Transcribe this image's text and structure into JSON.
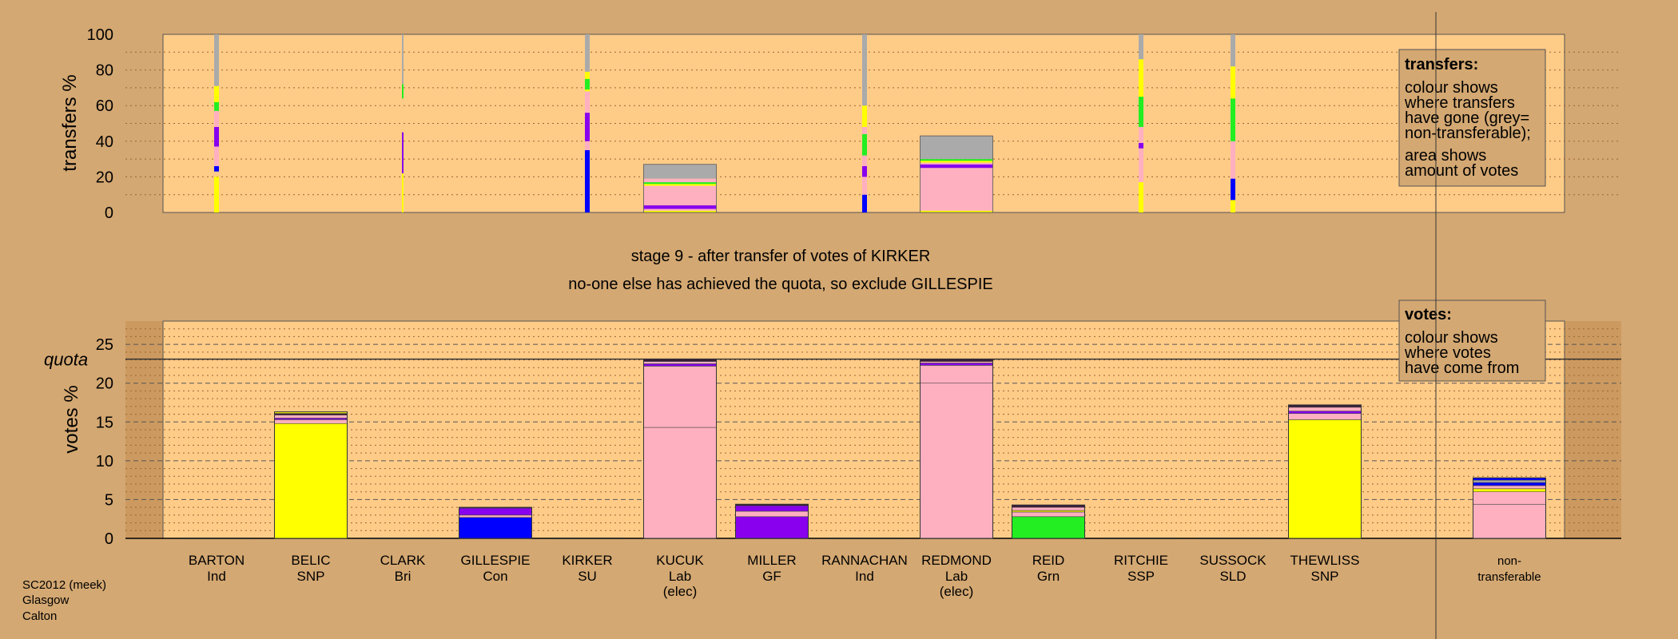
{
  "colors": {
    "background": "#d4a872",
    "panel": "#ffcc88",
    "panel_dark": "#cc9a60",
    "SNP": "#ffff00",
    "Lab": "#ffb0c0",
    "Con": "#0000ff",
    "GF": "#8800ee",
    "Grn": "#22ee22",
    "nontransferable": "#aaaaaa"
  },
  "header": {
    "stage_title": "stage 9 - after transfer of votes of KIRKER",
    "stage_subtitle": "no-one else has achieved the quota, so exclude GILLESPIE"
  },
  "footer": {
    "line1": "SC2012 (meek)",
    "line2": "Glasgow",
    "line3": "Calton"
  },
  "transfers_legend": {
    "title": "transfers:",
    "lines": [
      "colour shows",
      "where transfers",
      "have gone (grey=",
      "non-transferable);",
      "area shows",
      "amount of votes"
    ]
  },
  "votes_legend": {
    "title": "votes:",
    "lines": [
      "colour shows",
      "where votes",
      "have come from"
    ]
  },
  "chart_data": [
    {
      "type": "bar",
      "ylabel": "transfers %",
      "ylim": [
        0,
        100
      ],
      "yticks": [
        0,
        20,
        40,
        60,
        80,
        100
      ],
      "candidates": [
        "BARTON",
        "BELIC",
        "CLARK",
        "GILLESPIE",
        "KIRKER",
        "KUCUK",
        "MILLER",
        "RANNACHAN",
        "REDMOND",
        "REID",
        "RITCHIE",
        "SUSSOCK",
        "THEWLISS",
        "non-transferable"
      ],
      "transfers": [
        {
          "candidate": "BARTON",
          "width": "thin",
          "segments": [
            {
              "color": "#ffff00",
              "from": 0,
              "to": 20
            },
            {
              "color": "#0000ff",
              "from": 23,
              "to": 26
            },
            {
              "color": "#ffb0c0",
              "from": 26,
              "to": 37
            },
            {
              "color": "#8800ee",
              "from": 37,
              "to": 48
            },
            {
              "color": "#ffb0c0",
              "from": 48,
              "to": 57
            },
            {
              "color": "#22ee22",
              "from": 57,
              "to": 62
            },
            {
              "color": "#ffff00",
              "from": 62,
              "to": 71
            },
            {
              "color": "#aaaaaa",
              "from": 71,
              "to": 100
            }
          ]
        },
        {
          "candidate": "CLARK",
          "width": "hair",
          "segments": [
            {
              "color": "#ffff00",
              "from": 0,
              "to": 22
            },
            {
              "color": "#8800ee",
              "from": 22,
              "to": 45
            },
            {
              "color": "#22ee22",
              "from": 64,
              "to": 72
            },
            {
              "color": "#aaaaaa",
              "from": 72,
              "to": 100
            }
          ]
        },
        {
          "candidate": "KIRKER",
          "width": "thin",
          "segments": [
            {
              "color": "#0000ff",
              "from": 0,
              "to": 35
            },
            {
              "color": "#ffb0c0",
              "from": 35,
              "to": 40
            },
            {
              "color": "#8800ee",
              "from": 40,
              "to": 56
            },
            {
              "color": "#ffb0c0",
              "from": 56,
              "to": 68
            },
            {
              "color": "#ffff00",
              "from": 68,
              "to": 69
            },
            {
              "color": "#22ee22",
              "from": 69,
              "to": 75
            },
            {
              "color": "#ffff00",
              "from": 75,
              "to": 79
            },
            {
              "color": "#aaaaaa",
              "from": 79,
              "to": 100
            }
          ]
        },
        {
          "candidate": "KUCUK",
          "width": "wide",
          "segments": [
            {
              "color": "#ffff00",
              "from": 0,
              "to": 1
            },
            {
              "color": "#ffb0c0",
              "from": 1,
              "to": 2
            },
            {
              "color": "#8800ee",
              "from": 2,
              "to": 4
            },
            {
              "color": "#ffb0c0",
              "from": 4,
              "to": 15
            },
            {
              "color": "#ffff00",
              "from": 15,
              "to": 16
            },
            {
              "color": "#22ee22",
              "from": 16,
              "to": 17
            },
            {
              "color": "#ffb0c0",
              "from": 17,
              "to": 19
            },
            {
              "color": "#aaaaaa",
              "from": 19,
              "to": 27
            }
          ]
        },
        {
          "candidate": "RANNACHAN",
          "width": "thin",
          "segments": [
            {
              "color": "#0000ff",
              "from": 0,
              "to": 10
            },
            {
              "color": "#ffb0c0",
              "from": 10,
              "to": 20
            },
            {
              "color": "#8800ee",
              "from": 20,
              "to": 26
            },
            {
              "color": "#ffb0c0",
              "from": 26,
              "to": 32
            },
            {
              "color": "#22ee22",
              "from": 32,
              "to": 44
            },
            {
              "color": "#ffb0c0",
              "from": 44,
              "to": 48
            },
            {
              "color": "#ffff00",
              "from": 48,
              "to": 60
            },
            {
              "color": "#aaaaaa",
              "from": 60,
              "to": 100
            }
          ]
        },
        {
          "candidate": "REDMOND",
          "width": "wide",
          "segments": [
            {
              "color": "#ffff00",
              "from": 0,
              "to": 1
            },
            {
              "color": "#ffb0c0",
              "from": 1,
              "to": 25
            },
            {
              "color": "#8800ee",
              "from": 25,
              "to": 27
            },
            {
              "color": "#ffb0c0",
              "from": 27,
              "to": 28
            },
            {
              "color": "#ffff00",
              "from": 28,
              "to": 29
            },
            {
              "color": "#22ee22",
              "from": 29,
              "to": 30
            },
            {
              "color": "#aaaaaa",
              "from": 30,
              "to": 43
            }
          ]
        },
        {
          "candidate": "RITCHIE",
          "width": "thin",
          "segments": [
            {
              "color": "#ffff00",
              "from": 0,
              "to": 17
            },
            {
              "color": "#ffb0c0",
              "from": 17,
              "to": 36
            },
            {
              "color": "#8800ee",
              "from": 36,
              "to": 39
            },
            {
              "color": "#ffb0c0",
              "from": 39,
              "to": 48
            },
            {
              "color": "#22ee22",
              "from": 48,
              "to": 65
            },
            {
              "color": "#ffff00",
              "from": 65,
              "to": 86
            },
            {
              "color": "#aaaaaa",
              "from": 86,
              "to": 100
            }
          ]
        },
        {
          "candidate": "SUSSOCK",
          "width": "thin",
          "segments": [
            {
              "color": "#ffff00",
              "from": 0,
              "to": 7
            },
            {
              "color": "#0000ff",
              "from": 7,
              "to": 19
            },
            {
              "color": "#ffb0c0",
              "from": 19,
              "to": 40
            },
            {
              "color": "#22ee22",
              "from": 40,
              "to": 64
            },
            {
              "color": "#ffff00",
              "from": 64,
              "to": 82
            },
            {
              "color": "#aaaaaa",
              "from": 82,
              "to": 100
            }
          ]
        }
      ]
    },
    {
      "type": "bar",
      "ylabel": "votes %",
      "quota_label": "quota",
      "quota": 23.1,
      "ylim": [
        0,
        28
      ],
      "yticks": [
        0,
        5,
        10,
        15,
        20,
        25
      ],
      "candidates": [
        {
          "name": "BARTON",
          "party": "Ind",
          "status": "",
          "total": 0.1,
          "segments": []
        },
        {
          "name": "BELIC",
          "party": "SNP",
          "status": "",
          "total": 16.3,
          "segments": [
            {
              "color": "#ffff00",
              "value": 14.8
            },
            {
              "color": "#ffb0c0",
              "value": 0.5
            },
            {
              "color": "#8800ee",
              "value": 0.2
            },
            {
              "color": "#ffb0c0",
              "value": 0.4
            },
            {
              "color": "#3a1a3a",
              "value": 0.2
            },
            {
              "color": "#ffff00",
              "value": 0.2
            }
          ]
        },
        {
          "name": "CLARK",
          "party": "Bri",
          "status": "",
          "total": 0.1,
          "segments": []
        },
        {
          "name": "GILLESPIE",
          "party": "Con",
          "status": "",
          "total": 4.0,
          "segments": [
            {
              "color": "#0000ff",
              "value": 2.7
            },
            {
              "color": "#ffb0c0",
              "value": 0.3
            },
            {
              "color": "#8800ee",
              "value": 0.9
            },
            {
              "color": "#3a1a3a",
              "value": 0.1
            }
          ]
        },
        {
          "name": "KIRKER",
          "party": "SU",
          "status": "",
          "total": 0.1,
          "segments": []
        },
        {
          "name": "KUCUK",
          "party": "Lab",
          "status": "(elec)",
          "total": 23.1,
          "segments": [
            {
              "color": "#ffb0c0",
              "value": 14.3
            },
            {
              "color": "#ffb0c0",
              "value": 7.9
            },
            {
              "color": "#8800ee",
              "value": 0.3
            },
            {
              "color": "#ffb0c0",
              "value": 0.3
            },
            {
              "color": "#3a1a3a",
              "value": 0.3
            }
          ]
        },
        {
          "name": "MILLER",
          "party": "GF",
          "status": "",
          "total": 4.4,
          "segments": [
            {
              "color": "#8800ee",
              "value": 2.8
            },
            {
              "color": "#ffb0c0",
              "value": 0.7
            },
            {
              "color": "#8800ee",
              "value": 0.7
            },
            {
              "color": "#3a1a3a",
              "value": 0.2
            }
          ]
        },
        {
          "name": "RANNACHAN",
          "party": "Ind",
          "status": "",
          "total": 0.1,
          "segments": []
        },
        {
          "name": "REDMOND",
          "party": "Lab",
          "status": "(elec)",
          "total": 23.1,
          "segments": [
            {
              "color": "#ffb0c0",
              "value": 20.0
            },
            {
              "color": "#ffb0c0",
              "value": 2.3
            },
            {
              "color": "#8800ee",
              "value": 0.3
            },
            {
              "color": "#ffb0c0",
              "value": 0.2
            },
            {
              "color": "#3a1a3a",
              "value": 0.3
            }
          ]
        },
        {
          "name": "REID",
          "party": "Grn",
          "status": "",
          "total": 4.3,
          "segments": [
            {
              "color": "#22ee22",
              "value": 2.8
            },
            {
              "color": "#ffb0c0",
              "value": 0.6
            },
            {
              "color": "#ffff00",
              "value": 0.2
            },
            {
              "color": "#ffb0c0",
              "value": 0.4
            },
            {
              "color": "#3a1a3a",
              "value": 0.3
            }
          ]
        },
        {
          "name": "RITCHIE",
          "party": "SSP",
          "status": "",
          "total": 0.1,
          "segments": []
        },
        {
          "name": "SUSSOCK",
          "party": "SLD",
          "status": "",
          "total": 0.1,
          "segments": []
        },
        {
          "name": "THEWLISS",
          "party": "SNP",
          "status": "",
          "total": 17.2,
          "segments": [
            {
              "color": "#ffff00",
              "value": 15.3
            },
            {
              "color": "#ffb0c0",
              "value": 0.8
            },
            {
              "color": "#8800ee",
              "value": 0.3
            },
            {
              "color": "#ffb0c0",
              "value": 0.5
            },
            {
              "color": "#3a1a3a",
              "value": 0.3
            }
          ]
        },
        {
          "name": "non-",
          "party": "transferable",
          "status": "",
          "total": 7.8,
          "segments": [
            {
              "color": "#ffb0c0",
              "value": 4.4
            },
            {
              "color": "#ffb0c0",
              "value": 1.6
            },
            {
              "color": "#ffff00",
              "value": 0.4
            },
            {
              "color": "#ffb0c0",
              "value": 0.4
            },
            {
              "color": "#0000ff",
              "value": 0.4
            },
            {
              "color": "#aaaaaa",
              "value": 0.3
            },
            {
              "color": "#0000ff",
              "value": 0.3
            }
          ]
        }
      ]
    }
  ]
}
